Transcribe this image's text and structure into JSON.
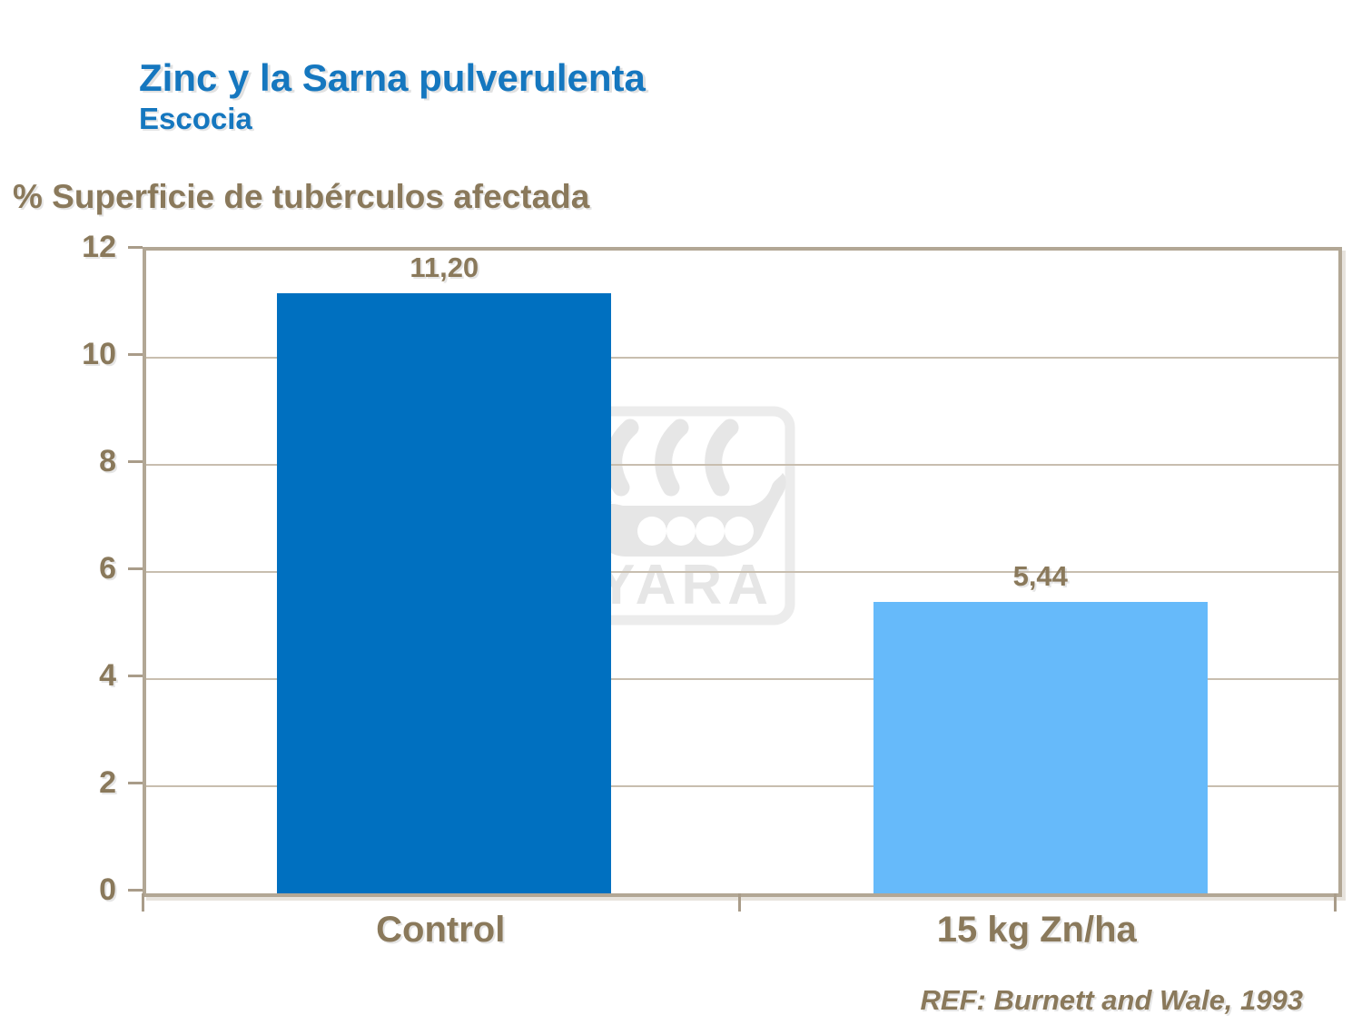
{
  "slide": {
    "title": "Zinc y la Sarna pulverulenta",
    "subtitle": "Escocia",
    "reference": "REF: Burnett and Wale, 1993",
    "watermark_text": "YARA"
  },
  "chart_data": {
    "type": "bar",
    "title": "% Superficie de tubérculos afectada",
    "ylabel": "% Superficie de tubérculos afectada",
    "xlabel": "",
    "categories": [
      "Control",
      "15 kg Zn/ha"
    ],
    "values": [
      11.2,
      5.44
    ],
    "value_labels": [
      "11,20",
      "5,44"
    ],
    "bar_colors": [
      "#0070C0",
      "#66BAFA"
    ],
    "ylim": [
      0,
      12
    ],
    "yticks": [
      0,
      2,
      4,
      6,
      8,
      10,
      12
    ],
    "grid": "horizontal",
    "legend": "none"
  },
  "colors": {
    "title_blue": "#1577BF",
    "text_brown": "#8A795B",
    "axis_frame": "#B2A795",
    "gridline": "#C8BEAF",
    "watermark_gray": "#E6E6E6",
    "background": "#FFFFFF"
  }
}
